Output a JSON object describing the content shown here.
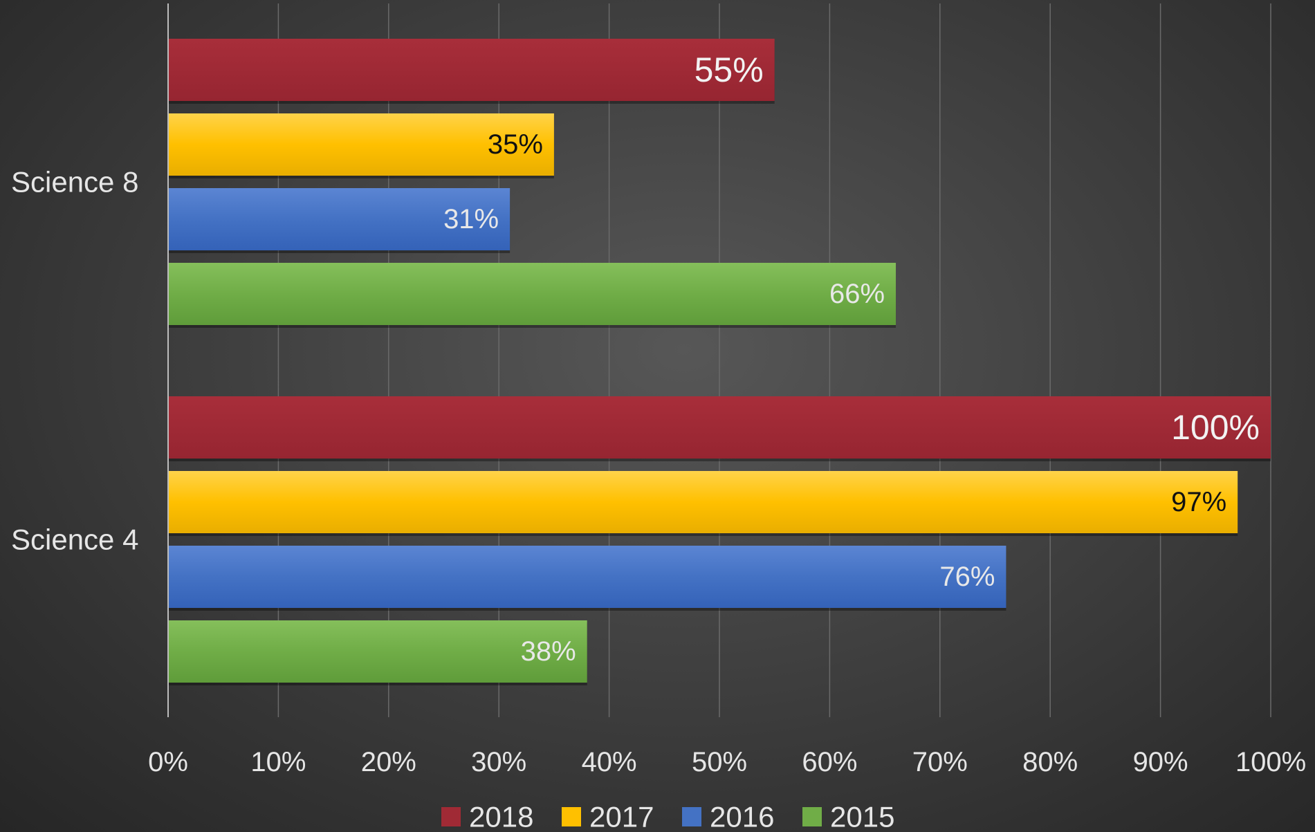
{
  "chart_data": {
    "type": "bar",
    "orientation": "horizontal",
    "categories": [
      "Science 8",
      "Science 4"
    ],
    "series": [
      {
        "name": "2018",
        "color": "#a02a35",
        "label_color": "#f2f2f2",
        "values": [
          55,
          100
        ],
        "labels": [
          "55%",
          "100%"
        ]
      },
      {
        "name": "2017",
        "color": "#ffc000",
        "label_color": "#111111",
        "values": [
          35,
          97
        ],
        "labels": [
          "35%",
          "97%"
        ]
      },
      {
        "name": "2016",
        "color": "#4472c4",
        "label_color": "#e8e8e8",
        "values": [
          31,
          76
        ],
        "labels": [
          "31%",
          "76%"
        ]
      },
      {
        "name": "2015",
        "color": "#70ad47",
        "label_color": "#e8e8e8",
        "values": [
          66,
          38
        ],
        "labels": [
          "66%",
          "38%"
        ]
      }
    ],
    "xlim": [
      0,
      100
    ],
    "x_ticks": [
      0,
      10,
      20,
      30,
      40,
      50,
      60,
      70,
      80,
      90,
      100
    ],
    "x_tick_labels": [
      "0%",
      "10%",
      "20%",
      "30%",
      "40%",
      "50%",
      "60%",
      "70%",
      "80%",
      "90%",
      "100%"
    ],
    "grid": true,
    "legend": "bottom",
    "title": "",
    "xlabel": "",
    "ylabel": ""
  }
}
